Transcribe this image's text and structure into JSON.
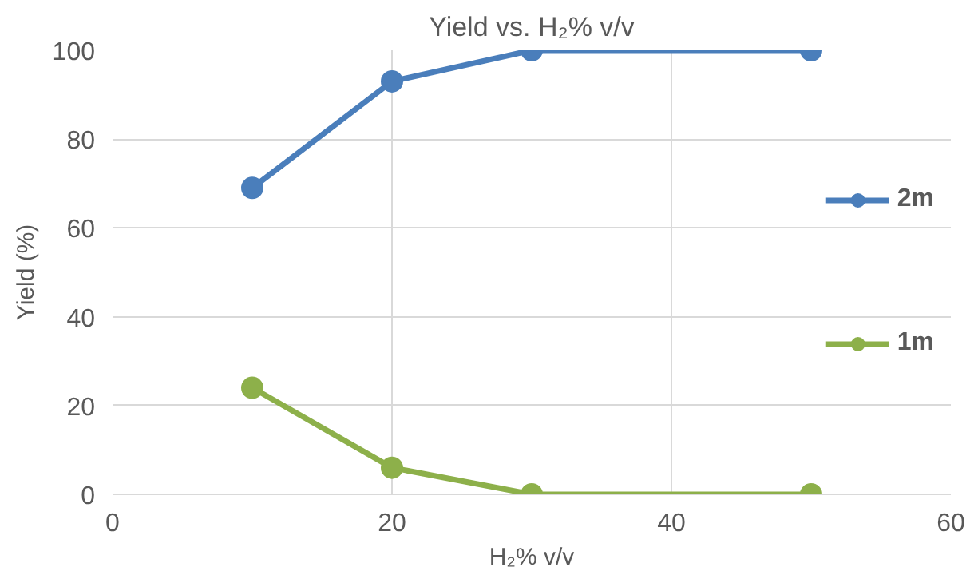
{
  "chart_data": {
    "type": "line",
    "title": "Yield vs. H₂% v/v",
    "xlabel": "H₂% v/v",
    "ylabel": "Yield (%)",
    "x": [
      10,
      20,
      30,
      50
    ],
    "series": [
      {
        "name": "2m",
        "color": "#4a7ebb",
        "values": [
          69,
          93,
          100,
          100
        ]
      },
      {
        "name": "1m",
        "color": "#8db04a",
        "values": [
          24,
          6,
          0,
          0
        ]
      }
    ],
    "xlim": [
      0,
      60
    ],
    "xticks": [
      0,
      20,
      40,
      60
    ],
    "ylim": [
      0,
      100
    ],
    "yticks": [
      0,
      20,
      40,
      60,
      80,
      100
    ],
    "grid": true,
    "legend": "right",
    "marker": "circle",
    "line_style": "solid"
  }
}
